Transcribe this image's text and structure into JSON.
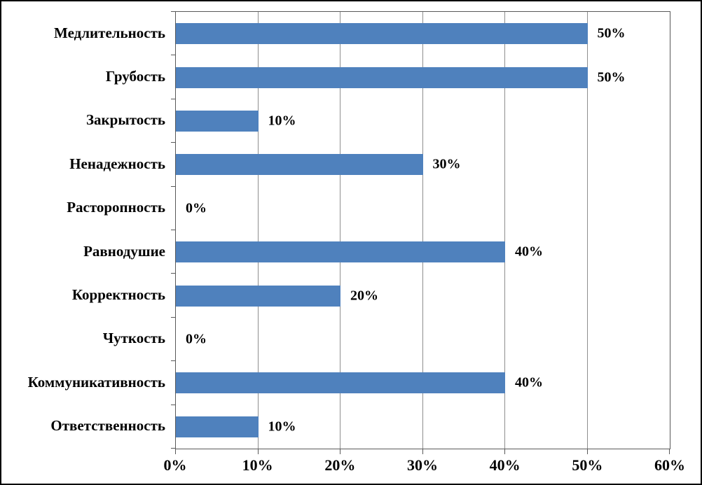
{
  "chart_data": {
    "type": "bar",
    "orientation": "horizontal",
    "title": "",
    "xlabel": "",
    "ylabel": "",
    "categories": [
      "Медлительность",
      "Грубость",
      "Закрытость",
      "Ненадежность",
      "Расторопность",
      "Равнодушие",
      "Корректность",
      "Чуткость",
      "Коммуникативность",
      "Ответственность"
    ],
    "values": [
      50,
      50,
      10,
      30,
      0,
      40,
      20,
      0,
      40,
      10
    ],
    "data_labels": [
      "50%",
      "50%",
      "10%",
      "30%",
      "0%",
      "40%",
      "20%",
      "0%",
      "40%",
      "10%"
    ],
    "x_tick_labels": [
      "0%",
      "10%",
      "20%",
      "30%",
      "40%",
      "50%",
      "60%"
    ],
    "x_tick_values": [
      0,
      10,
      20,
      30,
      40,
      50,
      60
    ],
    "xlim": [
      0,
      60
    ],
    "grid": true,
    "legend_position": "none",
    "bar_color": "#4F81BD",
    "gridline_color": "#8e8e8e",
    "axis_color": "#595959",
    "text_color": "#000000",
    "frame_color": "#000000"
  }
}
